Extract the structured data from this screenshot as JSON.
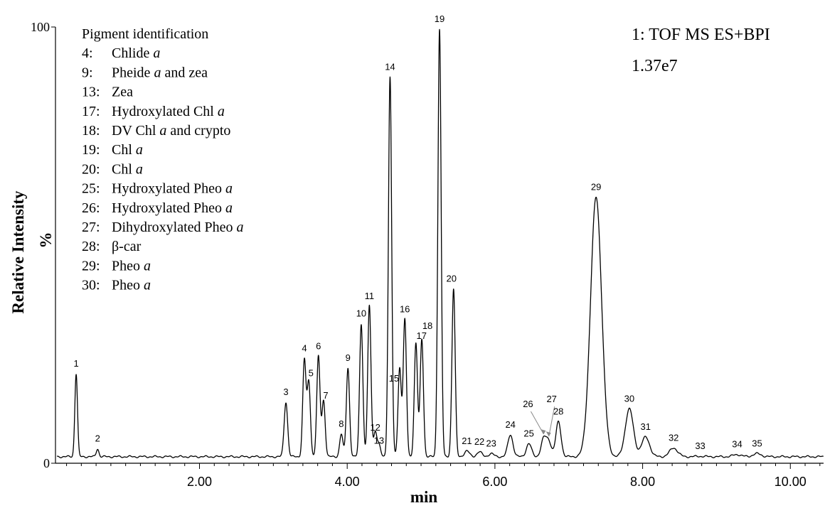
{
  "chart_data": {
    "type": "line",
    "xlabel": "min",
    "ylabel": "Relative Intensity",
    "ylabel_unit": "%",
    "xlim": [
      0.05,
      10.45
    ],
    "ylim": [
      0,
      100
    ],
    "x_ticks": [
      2.0,
      4.0,
      6.0,
      8.0,
      10.0
    ],
    "x_tick_labels": [
      "2.00",
      "4.00",
      "6.00",
      "8.00",
      "10.00"
    ],
    "y_ticks": [
      0,
      100
    ],
    "y_tick_labels": [
      "0",
      "100"
    ],
    "info_line1": "1: TOF MS ES+BPI",
    "info_line2": "1.37e7",
    "baseline": 1.5,
    "legend_title": "Pigment identification",
    "legend_entries": [
      {
        "num": "4:",
        "pre": "Chlide ",
        "ital": "a",
        "post": ""
      },
      {
        "num": "9:",
        "pre": "Pheide ",
        "ital": "a",
        "post": " and zea"
      },
      {
        "num": "13:",
        "pre": "Zea",
        "ital": "",
        "post": ""
      },
      {
        "num": "17:",
        "pre": "Hydroxylated Chl ",
        "ital": "a",
        "post": ""
      },
      {
        "num": "18:",
        "pre": "DV Chl ",
        "ital": "a",
        "post": " and crypto"
      },
      {
        "num": "19:",
        "pre": "Chl ",
        "ital": "a",
        "post": ""
      },
      {
        "num": "20:",
        "pre": "Chl ",
        "ital": "a",
        "post": ""
      },
      {
        "num": "25:",
        "pre": "Hydroxylated Pheo ",
        "ital": "a",
        "post": ""
      },
      {
        "num": "26:",
        "pre": "Hydroxylated Pheo ",
        "ital": "a",
        "post": ""
      },
      {
        "num": "27:",
        "pre": "Dihydroxylated Pheo ",
        "ital": "a",
        "post": ""
      },
      {
        "num": "28:",
        "pre": "β-car",
        "ital": "",
        "post": ""
      },
      {
        "num": "29:",
        "pre": "Pheo ",
        "ital": "a",
        "post": ""
      },
      {
        "num": "30:",
        "pre": "Pheo ",
        "ital": "a",
        "post": ""
      }
    ],
    "peaks": [
      {
        "label": "1",
        "rt": 0.33,
        "height": 20.5
      },
      {
        "label": "2",
        "rt": 0.62,
        "height": 3.3
      },
      {
        "label": "3",
        "rt": 3.17,
        "height": 14.0
      },
      {
        "label": "4",
        "rt": 3.42,
        "height": 24.0
      },
      {
        "label": "5",
        "rt": 3.48,
        "height": 19.0
      },
      {
        "label": "6",
        "rt": 3.61,
        "height": 24.5
      },
      {
        "label": "7",
        "rt": 3.68,
        "height": 14.5
      },
      {
        "label": "8",
        "rt": 3.92,
        "height": 6.7
      },
      {
        "label": "9",
        "rt": 4.01,
        "height": 21.8
      },
      {
        "label": "10",
        "rt": 4.19,
        "height": 32.0
      },
      {
        "label": "11",
        "rt": 4.3,
        "height": 36.0
      },
      {
        "label": "12",
        "rt": 4.38,
        "height": 7.5
      },
      {
        "label": "13",
        "rt": 4.43,
        "height": 4.5
      },
      {
        "label": "14",
        "rt": 4.58,
        "height": 88.5
      },
      {
        "label": "15",
        "rt": 4.71,
        "height": 22.0
      },
      {
        "label": "16",
        "rt": 4.78,
        "height": 33.0
      },
      {
        "label": "17",
        "rt": 4.93,
        "height": 27.5
      },
      {
        "label": "18",
        "rt": 5.01,
        "height": 28.5
      },
      {
        "label": "19",
        "rt": 5.25,
        "height": 99.5
      },
      {
        "label": "20",
        "rt": 5.44,
        "height": 40.0
      },
      {
        "label": "21",
        "rt": 5.62,
        "height": 2.8
      },
      {
        "label": "22",
        "rt": 5.79,
        "height": 2.6
      },
      {
        "label": "23",
        "rt": 5.95,
        "height": 2.2
      },
      {
        "label": "24",
        "rt": 6.21,
        "height": 6.5
      },
      {
        "label": "25",
        "rt": 6.46,
        "height": 4.5
      },
      {
        "label": "26",
        "rt": 6.66,
        "height": 6.0
      },
      {
        "label": "27",
        "rt": 6.73,
        "height": 5.5
      },
      {
        "label": "28",
        "rt": 6.86,
        "height": 9.5
      },
      {
        "label": "29",
        "rt": 7.37,
        "height": 61.0
      },
      {
        "label": "30",
        "rt": 7.82,
        "height": 12.5
      },
      {
        "label": "31",
        "rt": 8.04,
        "height": 6.0
      },
      {
        "label": "32",
        "rt": 8.42,
        "height": 3.5
      },
      {
        "label": "33",
        "rt": 8.78,
        "height": 1.6
      },
      {
        "label": "34",
        "rt": 9.28,
        "height": 2.0
      },
      {
        "label": "35",
        "rt": 9.55,
        "height": 2.2
      }
    ]
  }
}
